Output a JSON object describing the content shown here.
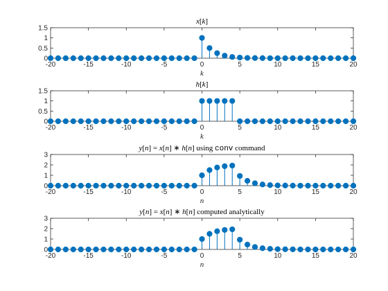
{
  "figure": {
    "background": "#ffffff",
    "axis_color": "#262626",
    "stem_color": "#0072bd"
  },
  "chart_data": [
    {
      "type": "stem",
      "title_parts": [
        {
          "text": "x",
          "style": "it"
        },
        {
          "text": "[",
          "style": ""
        },
        {
          "text": "k",
          "style": "it"
        },
        {
          "text": "]",
          "style": ""
        }
      ],
      "xlabel": "k",
      "xlim": [
        -20,
        20
      ],
      "ylim": [
        0,
        1.5
      ],
      "xticks": [
        -20,
        -15,
        -10,
        -5,
        0,
        5,
        10,
        15,
        20
      ],
      "yticks": [
        0,
        0.5,
        1,
        1.5
      ],
      "x_start": -20,
      "values": [
        0,
        0,
        0,
        0,
        0,
        0,
        0,
        0,
        0,
        0,
        0,
        0,
        0,
        0,
        0,
        0,
        0,
        0,
        0,
        0,
        1,
        0.5,
        0.25,
        0.125,
        0.0625,
        0.03125,
        0.0156,
        0.0078,
        0.0039,
        0.002,
        0.001,
        0,
        0,
        0,
        0,
        0,
        0,
        0,
        0,
        0,
        0
      ]
    },
    {
      "type": "stem",
      "title_parts": [
        {
          "text": "h",
          "style": "it"
        },
        {
          "text": "[",
          "style": ""
        },
        {
          "text": "k",
          "style": "it"
        },
        {
          "text": "]",
          "style": ""
        }
      ],
      "xlabel": "k",
      "xlim": [
        -20,
        20
      ],
      "ylim": [
        0,
        1.5
      ],
      "xticks": [
        -20,
        -15,
        -10,
        -5,
        0,
        5,
        10,
        15,
        20
      ],
      "yticks": [
        0,
        0.5,
        1,
        1.5
      ],
      "x_start": -20,
      "values": [
        0,
        0,
        0,
        0,
        0,
        0,
        0,
        0,
        0,
        0,
        0,
        0,
        0,
        0,
        0,
        0,
        0,
        0,
        0,
        0,
        1,
        1,
        1,
        1,
        1,
        0,
        0,
        0,
        0,
        0,
        0,
        0,
        0,
        0,
        0,
        0,
        0,
        0,
        0,
        0,
        0
      ]
    },
    {
      "type": "stem",
      "title_parts": [
        {
          "text": "y",
          "style": "it"
        },
        {
          "text": "[",
          "style": ""
        },
        {
          "text": "n",
          "style": "it"
        },
        {
          "text": "] = ",
          "style": ""
        },
        {
          "text": "x",
          "style": "it"
        },
        {
          "text": "[",
          "style": ""
        },
        {
          "text": "n",
          "style": "it"
        },
        {
          "text": "] ∗ ",
          "style": ""
        },
        {
          "text": "h",
          "style": "it"
        },
        {
          "text": "[",
          "style": ""
        },
        {
          "text": "n",
          "style": "it"
        },
        {
          "text": "] using ",
          "style": ""
        },
        {
          "text": "conv",
          "style": "mono"
        },
        {
          "text": " command",
          "style": ""
        }
      ],
      "xlabel": "n",
      "xlim": [
        -20,
        20
      ],
      "ylim": [
        0,
        3
      ],
      "xticks": [
        -20,
        -15,
        -10,
        -5,
        0,
        5,
        10,
        15,
        20
      ],
      "yticks": [
        0,
        1,
        2,
        3
      ],
      "x_start": -20,
      "values": [
        0,
        0,
        0,
        0,
        0,
        0,
        0,
        0,
        0,
        0,
        0,
        0,
        0,
        0,
        0,
        0,
        0,
        0,
        0,
        0,
        1,
        1.5,
        1.75,
        1.875,
        1.9375,
        0.9375,
        0.4688,
        0.2344,
        0.1172,
        0.0586,
        0.0293,
        0.0146,
        0.0073,
        0.0037,
        0.0018,
        0.0009,
        0,
        0,
        0,
        0,
        0
      ]
    },
    {
      "type": "stem",
      "title_parts": [
        {
          "text": "y",
          "style": "it"
        },
        {
          "text": "[",
          "style": ""
        },
        {
          "text": "n",
          "style": "it"
        },
        {
          "text": "] = ",
          "style": ""
        },
        {
          "text": "x",
          "style": "it"
        },
        {
          "text": "[",
          "style": ""
        },
        {
          "text": "n",
          "style": "it"
        },
        {
          "text": "] ∗ ",
          "style": ""
        },
        {
          "text": "h",
          "style": "it"
        },
        {
          "text": "[",
          "style": ""
        },
        {
          "text": "n",
          "style": "it"
        },
        {
          "text": "] computed analytically",
          "style": ""
        }
      ],
      "xlabel": "n",
      "xlim": [
        -20,
        20
      ],
      "ylim": [
        0,
        3
      ],
      "xticks": [
        -20,
        -15,
        -10,
        -5,
        0,
        5,
        10,
        15,
        20
      ],
      "yticks": [
        0,
        1,
        2,
        3
      ],
      "x_start": -20,
      "values": [
        0,
        0,
        0,
        0,
        0,
        0,
        0,
        0,
        0,
        0,
        0,
        0,
        0,
        0,
        0,
        0,
        0,
        0,
        0,
        0,
        1,
        1.5,
        1.75,
        1.875,
        1.9375,
        0.9375,
        0.4688,
        0.2344,
        0.1172,
        0.0586,
        0.0293,
        0.0146,
        0.0073,
        0.0037,
        0.0018,
        0.0009,
        0,
        0,
        0,
        0,
        0
      ]
    }
  ]
}
